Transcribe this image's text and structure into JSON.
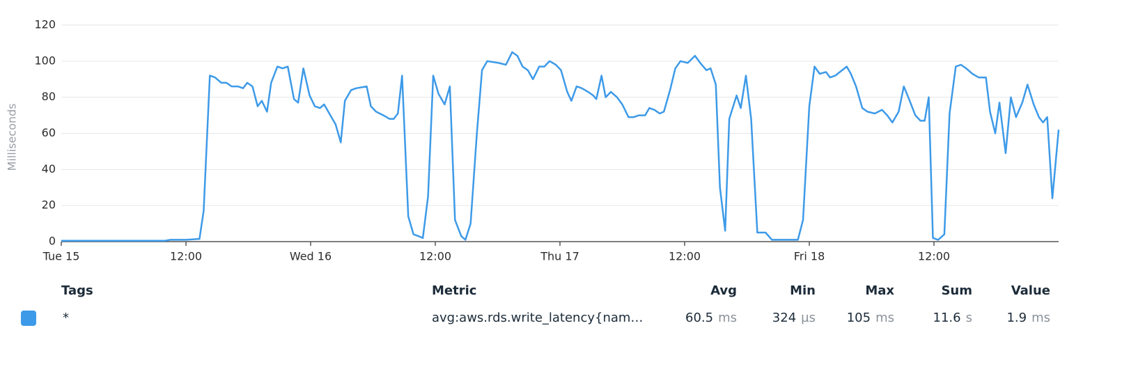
{
  "chart_data": {
    "type": "line",
    "ylabel": "Milliseconds",
    "xlim": [
      0,
      96
    ],
    "xticks": [
      {
        "value": 0,
        "label": "Tue 15"
      },
      {
        "value": 12,
        "label": "12:00"
      },
      {
        "value": 24,
        "label": "Wed 16"
      },
      {
        "value": 36,
        "label": "12:00"
      },
      {
        "value": 48,
        "label": "Thu 17"
      },
      {
        "value": 60,
        "label": "12:00"
      },
      {
        "value": 72,
        "label": "Fri 18"
      },
      {
        "value": 84,
        "label": "12:00"
      }
    ],
    "ylim": [
      0,
      120
    ],
    "yticks": [
      0,
      20,
      40,
      60,
      80,
      100,
      120
    ],
    "grid": true,
    "x": [
      0,
      2,
      4,
      6,
      8,
      10,
      10.5,
      12,
      13.3,
      13.7,
      14.3,
      14.8,
      15.4,
      15.9,
      16.4,
      17,
      17.5,
      17.9,
      18.4,
      18.9,
      19.3,
      19.8,
      20.2,
      20.8,
      21.3,
      21.8,
      22.4,
      22.8,
      23.3,
      23.9,
      24.4,
      24.9,
      25.3,
      25.9,
      26.4,
      26.9,
      27.3,
      27.9,
      28.4,
      29.4,
      29.8,
      30.3,
      31,
      31.6,
      32,
      32.4,
      32.8,
      33.4,
      33.9,
      34.4,
      34.8,
      35.3,
      35.8,
      36.3,
      36.9,
      37.4,
      37.9,
      38.5,
      38.9,
      39.4,
      40,
      40.5,
      41,
      42.1,
      42.8,
      43.4,
      43.9,
      44.4,
      44.9,
      45.4,
      46,
      46.5,
      47,
      47.6,
      48.1,
      48.7,
      49.1,
      49.6,
      50.1,
      50.7,
      51.2,
      51.5,
      52,
      52.4,
      52.9,
      53.5,
      54,
      54.6,
      55.1,
      55.6,
      56.2,
      56.6,
      57.1,
      57.6,
      58,
      58.6,
      59.1,
      59.6,
      60.3,
      61,
      61.5,
      62.1,
      62.5,
      63,
      63.4,
      63.9,
      64.3,
      65,
      65.4,
      65.9,
      66.4,
      67,
      67.8,
      68.4,
      69.2,
      70.9,
      71.4,
      72,
      72.5,
      73,
      73.6,
      74,
      74.5,
      75.6,
      76,
      76.5,
      77.1,
      77.6,
      78.3,
      79,
      79.5,
      80,
      80.6,
      81.1,
      81.6,
      82.2,
      82.7,
      83.1,
      83.5,
      83.9,
      84.4,
      85,
      85.5,
      86.1,
      86.6,
      87.1,
      87.7,
      88.3,
      89,
      89.4,
      89.9,
      90.3,
      90.9,
      91.4,
      91.9,
      92.5,
      93,
      93.6,
      94.1,
      94.5,
      94.9,
      95.4,
      96
    ],
    "series": [
      {
        "name": "*",
        "color": "#3d9ae8",
        "values": [
          0.5,
          0.5,
          0.5,
          0.5,
          0.5,
          0.5,
          1,
          1,
          1.5,
          17,
          92,
          91,
          88,
          88,
          86,
          86,
          85,
          88,
          86,
          75,
          78,
          72,
          88,
          97,
          96,
          97,
          79,
          77,
          96,
          81,
          75,
          74,
          76,
          70,
          65,
          55,
          78,
          84,
          85,
          86,
          75,
          72,
          70,
          68,
          68,
          71,
          92,
          14,
          4,
          3,
          2,
          25,
          92,
          82,
          76,
          86,
          12,
          3,
          1,
          10,
          60,
          95,
          100,
          99,
          98,
          105,
          103,
          97,
          95,
          90,
          97,
          97,
          100,
          98,
          95,
          83,
          78,
          86,
          85,
          83,
          81,
          79,
          92,
          80,
          83,
          80,
          76,
          69,
          69,
          70,
          70,
          74,
          73,
          71,
          72,
          84,
          96,
          100,
          99,
          103,
          99,
          95,
          96,
          87,
          30,
          6,
          68,
          81,
          74,
          92,
          68,
          5,
          5,
          1,
          1,
          1,
          12,
          75,
          97,
          93,
          94,
          91,
          92,
          97,
          93,
          86,
          74,
          72,
          71,
          73,
          70,
          66,
          72,
          86,
          79,
          70,
          67,
          67,
          80,
          2,
          1,
          4,
          71,
          97,
          98,
          96,
          93,
          91,
          91,
          72,
          60,
          77,
          49,
          80,
          69,
          77,
          87,
          76,
          69,
          66,
          69,
          24,
          62
        ]
      }
    ]
  },
  "table": {
    "headers": [
      "Tags",
      "Metric",
      "Avg",
      "Min",
      "Max",
      "Sum",
      "Value"
    ],
    "rows": [
      {
        "metric": "avg:aws.rds.write_latency{nam…",
        "stats": [
          {
            "number": 60.5,
            "unit": "ms"
          },
          {
            "number": 324,
            "unit": "µs"
          },
          {
            "number": 105,
            "unit": "ms"
          },
          {
            "number": 11.6,
            "unit": "s"
          },
          {
            "number": 1.9,
            "unit": "ms"
          }
        ]
      }
    ]
  }
}
